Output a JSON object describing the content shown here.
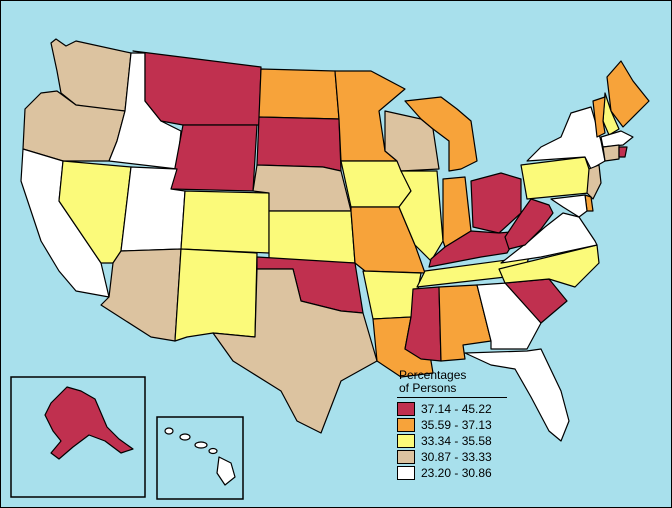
{
  "legend": {
    "title_line1": "Percentages",
    "title_line2": "of Persons",
    "classes": [
      {
        "label": "37.14 - 45.22",
        "color": "#c0304f"
      },
      {
        "label": "35.59 - 37.13",
        "color": "#f7a33a"
      },
      {
        "label": "33.34 - 35.58",
        "color": "#fbfa7a"
      },
      {
        "label": "30.87 - 33.33",
        "color": "#dcc3a0"
      },
      {
        "label": "23.20 - 30.86",
        "color": "#ffffff"
      }
    ]
  },
  "colors": {
    "ocean": "#a8e0ec",
    "border": "#000000"
  },
  "states": {
    "WA": 3,
    "OR": 3,
    "CA": 4,
    "ID": 4,
    "NV": 2,
    "MT": 0,
    "WY": 0,
    "UT": 4,
    "AZ": 3,
    "CO": 2,
    "NM": 2,
    "ND": 1,
    "SD": 0,
    "NE": 3,
    "KS": 2,
    "OK": 0,
    "TX": 3,
    "MN": 1,
    "IA": 2,
    "MO": 1,
    "AR": 2,
    "LA": 1,
    "WI": 3,
    "IL": 2,
    "MI": 1,
    "IN": 1,
    "OH": 0,
    "KY": 0,
    "TN": 2,
    "MS": 0,
    "AL": 1,
    "GA": 4,
    "FL": 4,
    "SC": 0,
    "NC": 2,
    "VA": 4,
    "WV": 0,
    "PA": 2,
    "NY": 4,
    "ME": 1,
    "NH": 2,
    "VT": 1,
    "MA": 4,
    "CT": 3,
    "NJ": 3,
    "MD": 4,
    "DE": 1,
    "RI": 0,
    "AK": 0,
    "HI": 4
  }
}
